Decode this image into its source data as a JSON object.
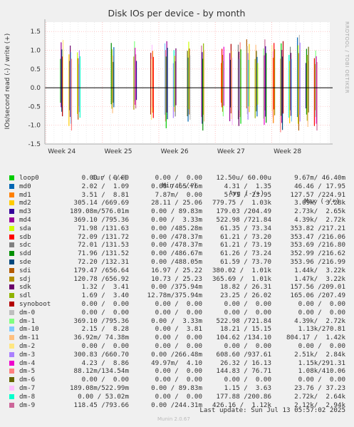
{
  "title": "Disk IOs per device - by month",
  "ylabel": "IOs/second read (-) / write (+)",
  "side_text": "RRDTOOL / TOBI OETIKER",
  "last_update": "Last update: Sun Jul 13 05:57:02 2025",
  "munin_version": "Munin 2.0.67",
  "legend_headers": {
    "cur": "Cur (-/+)",
    "min": "Min (-/+)",
    "avg": "Avg (-/+)",
    "max": "Max (-/+)"
  },
  "chart_data": {
    "type": "line",
    "title": "Disk IOs per device - by month",
    "ylabel": "IOs/second read (-) / write (+)",
    "ylim": [
      -1.5,
      1.75
    ],
    "y_ticks": [
      "1.5",
      "1.0",
      "0.5",
      "0.0",
      "-0.5",
      "-1.0",
      "-1.5"
    ],
    "y_tick_values": [
      1.5,
      1.0,
      0.5,
      0.0,
      -0.5,
      -1.0,
      -1.5
    ],
    "x_ticks": [
      "Week 24",
      "Week 25",
      "Week 26",
      "Week 27",
      "Week 28"
    ],
    "grid": true,
    "legend_position": "bottom",
    "series": [
      {
        "name": "loop0",
        "color": "#00cc00",
        "cur": "0.00 /  0.00",
        "min": "0.00 /  0.00",
        "avg": "12.50u/ 60.00u",
        "max": "9.67m/ 46.40m"
      },
      {
        "name": "md0",
        "color": "#0066b3",
        "cur": "2.02 /  1.09",
        "min": "0.00 /465.76m",
        "avg": "4.31 /  1.35",
        "max": "46.46 / 17.95"
      },
      {
        "name": "md1",
        "color": "#ff8000",
        "cur": "3.51 /  8.81",
        "min": "5.71 / 23.95",
        "avg": "127.57 /224.91",
        "max": "7.87m/  0.00",
        "swap_avg_min": true
      },
      {
        "name": "md2",
        "color": "#ffcc00",
        "cur": "305.14 /669.69",
        "min": "28.11 / 25.06",
        "avg": "779.75 /  1.03k",
        "max": "3.09k/  3.28k"
      },
      {
        "name": "md3",
        "color": "#330099",
        "cur": "189.08m/576.01m",
        "min": "0.00 / 89.83m",
        "avg": "179.03 /204.49",
        "max": "2.73k/  2.65k"
      },
      {
        "name": "md4",
        "color": "#990099",
        "cur": "369.10 /795.36",
        "min": "0.00 /  3.33m",
        "avg": "522.98 /721.84",
        "max": "4.39k/  2.72k"
      },
      {
        "name": "sda",
        "color": "#ccff00",
        "cur": "71.98 /131.63",
        "min": "0.00 /485.28m",
        "avg": "61.35 / 73.34",
        "max": "353.82 /217.21"
      },
      {
        "name": "sdb",
        "color": "#ff0000",
        "cur": "72.09 /131.72",
        "min": "0.00 /478.37m",
        "avg": "61.21 / 73.20",
        "max": "353.47 /216.06"
      },
      {
        "name": "sdc",
        "color": "#808080",
        "cur": "72.01 /131.53",
        "min": "0.00 /478.37m",
        "avg": "61.21 / 73.19",
        "max": "353.69 /216.80"
      },
      {
        "name": "sdd",
        "color": "#008f00",
        "cur": "71.96 /131.52",
        "min": "0.00 /486.67m",
        "avg": "61.26 / 73.24",
        "max": "352.99 /216.62"
      },
      {
        "name": "sde",
        "color": "#00487d",
        "cur": "72.20 /132.31",
        "min": "0.00 /488.05m",
        "avg": "61.59 / 73.70",
        "max": "353.96 /216.99"
      },
      {
        "name": "sdi",
        "color": "#b35a00",
        "cur": "179.47 /656.64",
        "min": "16.97 / 25.22",
        "avg": "380.02 /  1.01k",
        "max": "1.44k/  3.22k"
      },
      {
        "name": "sdj",
        "color": "#b38f00",
        "cur": "120.78 /656.92",
        "min": "10.73 / 25.23",
        "avg": "365.69 /  1.01k",
        "max": "1.47k/  3.22k"
      },
      {
        "name": "sdk",
        "color": "#6b006b",
        "cur": "1.32 /  3.41",
        "min": "0.00 /375.94m",
        "avg": "18.82 / 26.31",
        "max": "157.56 /209.01"
      },
      {
        "name": "sdl",
        "color": "#8fb300",
        "cur": "1.69 /  3.40",
        "min": "12.78m/375.94m",
        "avg": "23.25 / 26.02",
        "max": "165.06 /207.49"
      },
      {
        "name": "synoboot",
        "color": "#b30000",
        "cur": "0.00 /  0.00",
        "min": "0.00 /  0.00",
        "avg": "0.00 /  0.00",
        "max": "0.00 /  0.00"
      },
      {
        "name": "dm-0",
        "color": "#bebebe",
        "cur": "0.00 /  0.00",
        "min": "0.00 /  0.00",
        "avg": "0.00 /  0.00",
        "max": "0.00 /  0.00"
      },
      {
        "name": "dm-1",
        "color": "#80ff80",
        "cur": "369.10 /795.36",
        "min": "0.00 /  3.33m",
        "avg": "522.98 /721.84",
        "max": "4.39k/  2.72k"
      },
      {
        "name": "dm-10",
        "color": "#80c9ff",
        "cur": "2.15 /  8.28",
        "min": "0.00 /  3.81",
        "avg": "18.21 / 15.15",
        "max": "1.13k/270.81"
      },
      {
        "name": "dm-11",
        "color": "#ffc080",
        "cur": "36.92m/ 74.38m",
        "min": "0.00 /  0.00",
        "avg": "104.62 /134.10",
        "max": "804.17 /  1.42k"
      },
      {
        "name": "dm-2",
        "color": "#ffe680",
        "cur": "0.00 /  0.00",
        "min": "0.00 /  0.00",
        "avg": "0.00 /  0.00",
        "max": "0.00 /  0.00"
      },
      {
        "name": "dm-3",
        "color": "#aa80ff",
        "cur": "300.83 /660.70",
        "min": "0.00 /266.48m",
        "avg": "608.60 /937.61",
        "max": "2.51k/  2.84k"
      },
      {
        "name": "dm-4",
        "color": "#ee00cc",
        "cur": "4.23 /  8.86",
        "min": "49.97m/  4.10",
        "avg": "26.32 / 16.13",
        "max": "1.15k/291.31"
      },
      {
        "name": "dm-5",
        "color": "#ff8080",
        "cur": "88.12m/134.54m",
        "min": "0.00 /  0.00",
        "avg": "144.83 / 76.71",
        "max": "1.08k/410.06"
      },
      {
        "name": "dm-6",
        "color": "#666600",
        "cur": "0.00 /  0.00",
        "min": "0.00 /  0.00",
        "avg": "0.00 /  0.00",
        "max": "0.00 /  0.00"
      },
      {
        "name": "dm-7",
        "color": "#ffbfff",
        "cur": "189.08m/522.99m",
        "min": "0.00 / 89.83m",
        "avg": "1.15 /  3.63",
        "max": "23.76 / 37.23"
      },
      {
        "name": "dm-8",
        "color": "#00ffcc",
        "cur": "0.00 / 53.02m",
        "min": "0.00 /  0.00",
        "avg": "177.88 /200.86",
        "max": "2.72k/  2.64k"
      },
      {
        "name": "dm-9",
        "color": "#cc6699",
        "cur": "118.45 /793.66",
        "min": "0.00 /244.31m",
        "avg": "426.16 /  1.12k",
        "max": "2.12k/  2.94k"
      }
    ],
    "spikes": [
      {
        "x": 24.0,
        "up": 1.4,
        "down": -0.8
      },
      {
        "x": 24.15,
        "up": 1.3,
        "down": -1.2
      },
      {
        "x": 24.3,
        "up": 1.15,
        "down": -1.0
      },
      {
        "x": 24.9,
        "up": 1.25,
        "down": -0.8
      },
      {
        "x": 25.3,
        "up": 1.3,
        "down": -0.65
      },
      {
        "x": 25.6,
        "up": 1.2,
        "down": -0.95
      },
      {
        "x": 25.85,
        "up": 1.3,
        "down": -1.2
      },
      {
        "x": 26.0,
        "up": 1.1,
        "down": -0.85
      },
      {
        "x": 26.25,
        "up": 1.35,
        "down": -0.95
      },
      {
        "x": 26.5,
        "up": 1.3,
        "down": -1.2
      },
      {
        "x": 26.85,
        "up": 1.2,
        "down": -0.8
      },
      {
        "x": 27.0,
        "up": 1.35,
        "down": -1.05
      },
      {
        "x": 27.15,
        "up": 1.4,
        "down": -1.2
      },
      {
        "x": 27.3,
        "up": 1.35,
        "down": -1.0
      },
      {
        "x": 27.45,
        "up": 1.2,
        "down": -0.9
      },
      {
        "x": 27.6,
        "up": 1.35,
        "down": -1.1
      },
      {
        "x": 27.75,
        "up": 1.25,
        "down": -1.05
      },
      {
        "x": 27.9,
        "up": 1.3,
        "down": -1.25
      },
      {
        "x": 28.05,
        "up": 1.2,
        "down": -1.0
      },
      {
        "x": 28.2,
        "up": 1.55,
        "down": -1.2
      },
      {
        "x": 28.35,
        "up": 1.2,
        "down": -1.1
      },
      {
        "x": 28.5,
        "up": 1.15,
        "down": -1.2
      }
    ]
  }
}
